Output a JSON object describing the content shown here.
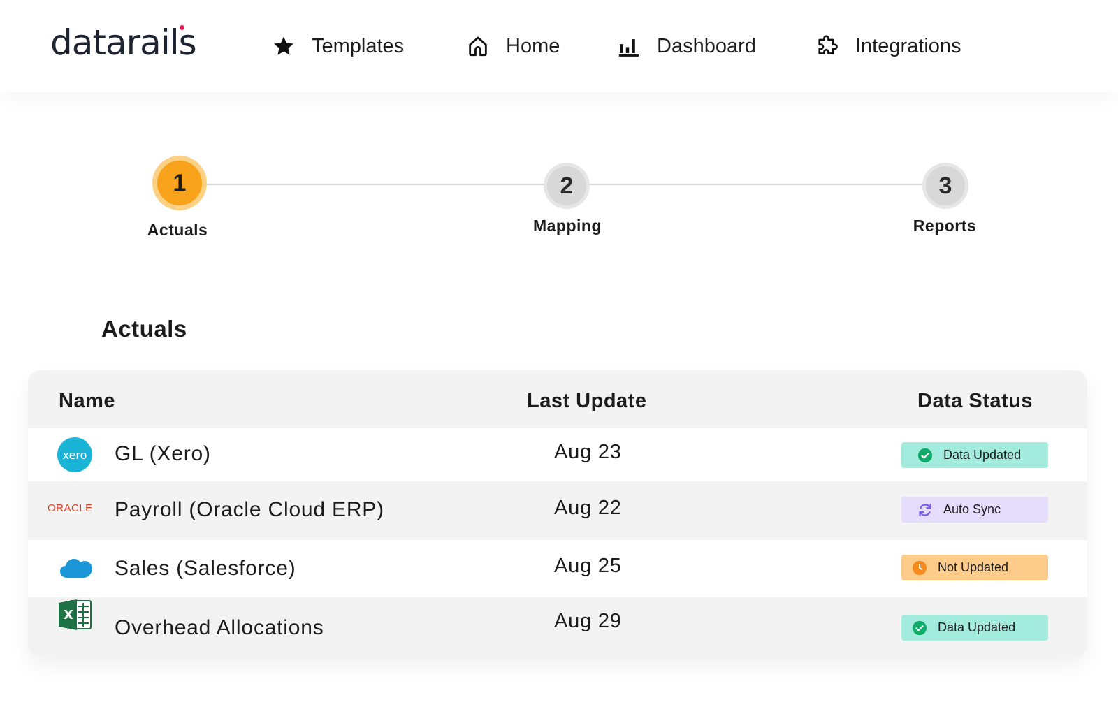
{
  "brand": {
    "logo_text": "datarails",
    "colors": {
      "accent": "#f9a31c",
      "dot": "#ec1c5b"
    }
  },
  "nav": [
    {
      "icon": "star-icon",
      "label": "Templates"
    },
    {
      "icon": "home-icon",
      "label": "Home"
    },
    {
      "icon": "bar-chart-icon",
      "label": "Dashboard"
    },
    {
      "icon": "puzzle-icon",
      "label": "Integrations"
    }
  ],
  "stepper": [
    {
      "number": "1",
      "label": "Actuals",
      "state": "active"
    },
    {
      "number": "2",
      "label": "Mapping",
      "state": "pending"
    },
    {
      "number": "3",
      "label": "Reports",
      "state": "pending"
    }
  ],
  "section": {
    "title": "Actuals"
  },
  "table": {
    "headers": {
      "name": "Name",
      "last_update": "Last Update",
      "status": "Data Status"
    },
    "rows": [
      {
        "logo": "xero-logo",
        "logo_text": "xero",
        "name": "GL (Xero)",
        "last_update": "Aug 23",
        "status": "Data Updated",
        "status_icon": "check-circle-icon"
      },
      {
        "logo": "oracle-logo",
        "logo_text": "ORACLE",
        "name": "Payroll (Oracle Cloud ERP)",
        "last_update": "Aug 22",
        "status": "Auto Sync",
        "status_icon": "sync-icon"
      },
      {
        "logo": "salesforce-logo",
        "logo_text": "salesforce",
        "name": "Sales (Salesforce)",
        "last_update": "Aug 25",
        "status": "Not Updated",
        "status_icon": "clock-icon"
      },
      {
        "logo": "excel-logo",
        "logo_text": "X",
        "name": "Overhead Allocations",
        "last_update": "Aug 29",
        "status": "Data Updated",
        "status_icon": "check-circle-icon"
      }
    ]
  }
}
